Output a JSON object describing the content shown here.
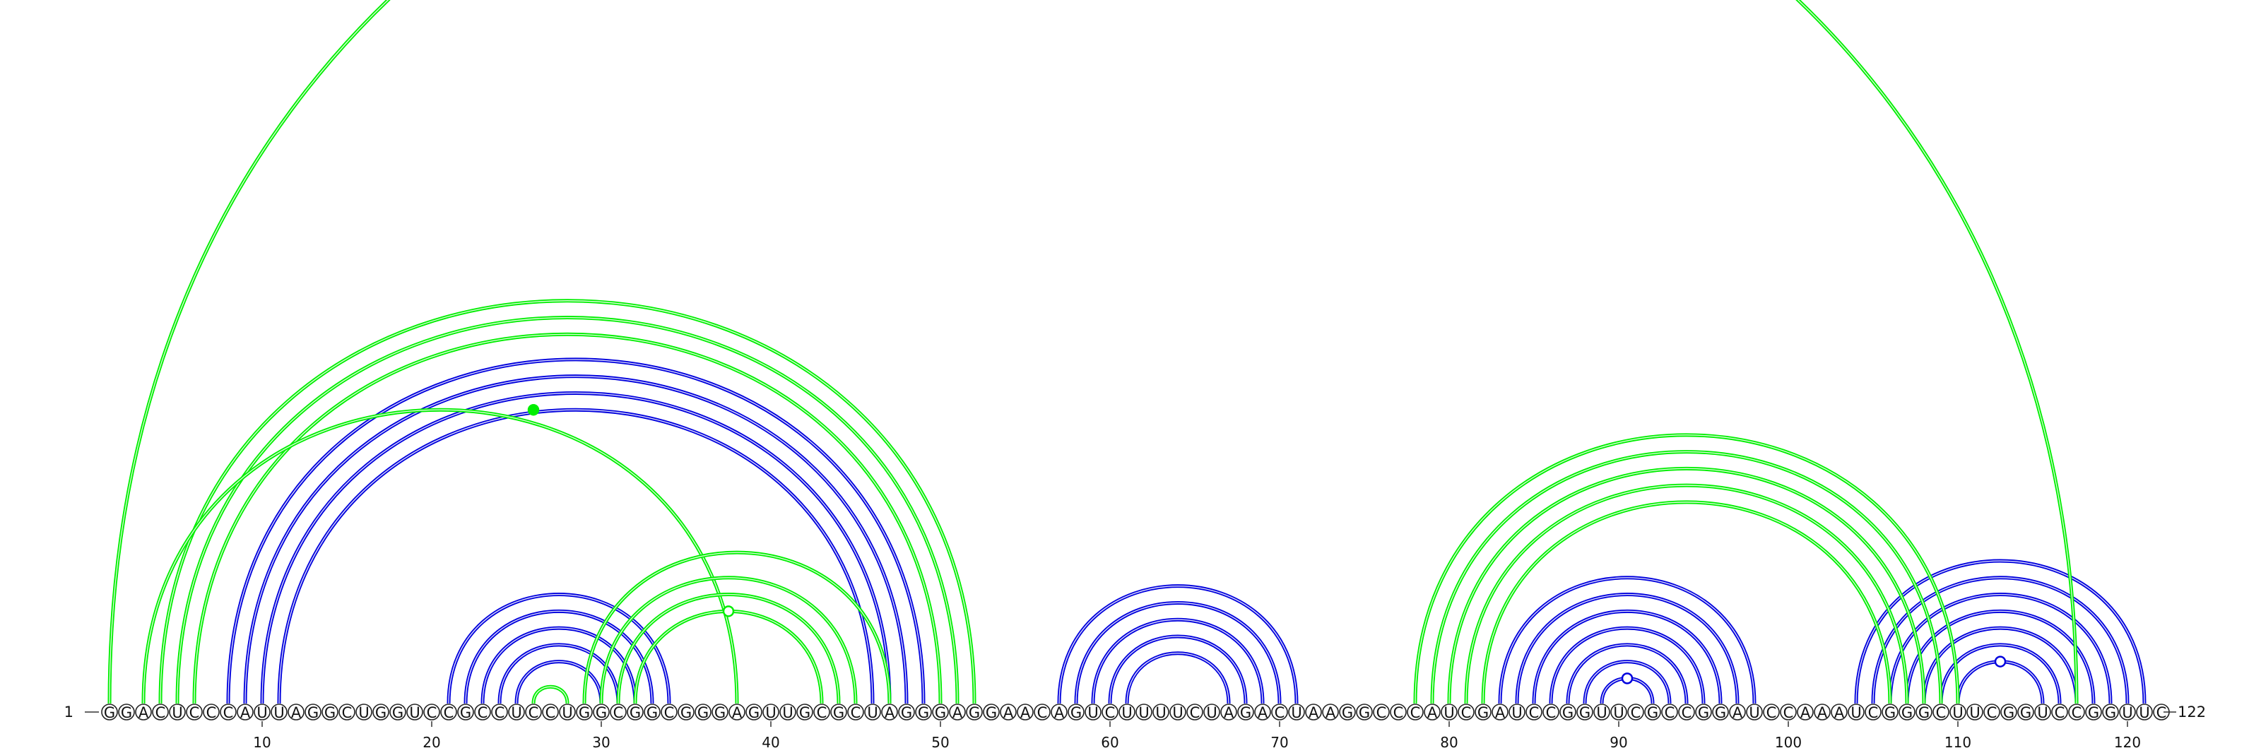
{
  "sequence": "GGACUCCCAUUAGGCUGGUCCGCCUCCUGGCGGCGGGAGUUGCGCUAGGGAGGAACAGUCUUUUCUAGACUAAGGCCCAUCGAUCCGGUUCGCCGGAUCCAAAUCGGGCUUCGGUCCGGUUC",
  "start_label": "1",
  "end_label": "122",
  "tick_labels": [
    "10",
    "20",
    "30",
    "40",
    "50",
    "60",
    "70",
    "80",
    "90",
    "100",
    "110",
    "120"
  ],
  "colors": {
    "set_a": "#00ee00",
    "set_b": "#0000dd",
    "base_stroke": "#222222"
  },
  "green_pairs": [
    [
      1,
      117
    ],
    [
      4,
      52
    ],
    [
      5,
      51
    ],
    [
      6,
      50
    ],
    [
      3,
      38
    ],
    [
      26,
      28
    ],
    [
      30,
      45
    ],
    [
      31,
      44
    ],
    [
      32,
      43
    ],
    [
      29,
      47
    ],
    [
      78,
      110
    ],
    [
      79,
      109
    ],
    [
      80,
      108
    ],
    [
      81,
      107
    ],
    [
      82,
      106
    ]
  ],
  "blue_pairs": [
    [
      8,
      49
    ],
    [
      9,
      48
    ],
    [
      10,
      47
    ],
    [
      11,
      46
    ],
    [
      21,
      34
    ],
    [
      22,
      33
    ],
    [
      23,
      32
    ],
    [
      24,
      31
    ],
    [
      25,
      30
    ],
    [
      57,
      71
    ],
    [
      58,
      70
    ],
    [
      59,
      69
    ],
    [
      60,
      68
    ],
    [
      61,
      67
    ],
    [
      83,
      98
    ],
    [
      84,
      97
    ],
    [
      85,
      96
    ],
    [
      86,
      95
    ],
    [
      87,
      94
    ],
    [
      88,
      93
    ],
    [
      89,
      92
    ],
    [
      104,
      121
    ],
    [
      105,
      120
    ],
    [
      106,
      119
    ],
    [
      107,
      118
    ],
    [
      108,
      117
    ],
    [
      109,
      116
    ],
    [
      110,
      115
    ]
  ],
  "markers": [
    {
      "pos": 37.5,
      "series": "green",
      "open": true
    },
    {
      "pos": 26,
      "series": "green",
      "open": false
    },
    {
      "pos": 90.5,
      "series": "blue",
      "open": true
    },
    {
      "pos": 112.5,
      "series": "blue",
      "open": true
    }
  ]
}
